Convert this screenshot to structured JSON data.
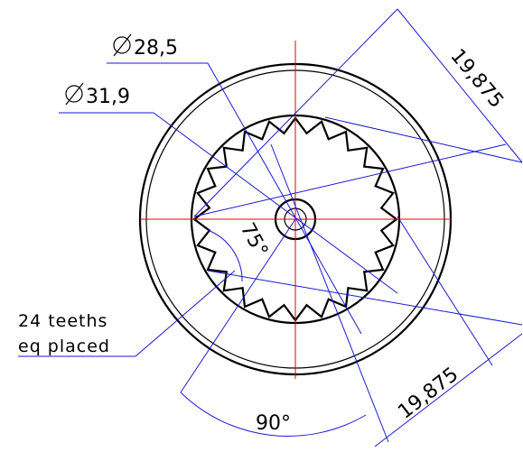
{
  "labels": {
    "diameter_small": "28,5",
    "diameter_large": "31,9",
    "dimension_top": "19,875",
    "dimension_bottom": "19,875",
    "angle_small": "75°",
    "angle_large": "90°",
    "note_line_1": "24 teeths",
    "note_line_2": "eq placed"
  }
}
